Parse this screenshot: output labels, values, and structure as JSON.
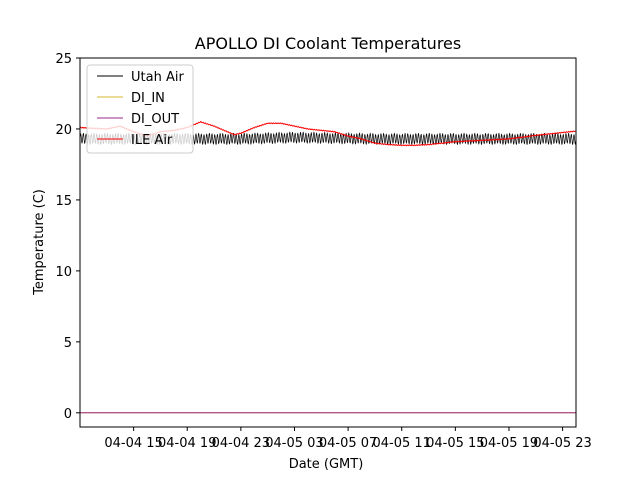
{
  "chart_data": {
    "type": "line",
    "title": "APOLLO DI Coolant Temperatures",
    "xlabel": "Date (GMT)",
    "ylabel": "Temperature (C)",
    "ylim": [
      -1,
      25
    ],
    "xlim_hours": [
      0,
      37
    ],
    "yticks": [
      0,
      5,
      10,
      15,
      20,
      25
    ],
    "xticks": [
      {
        "hour": 4,
        "label": "04-04 15"
      },
      {
        "hour": 8,
        "label": "04-04 19"
      },
      {
        "hour": 12,
        "label": "04-04 23"
      },
      {
        "hour": 16,
        "label": "04-05 03"
      },
      {
        "hour": 20,
        "label": "04-05 07"
      },
      {
        "hour": 24,
        "label": "04-05 11"
      },
      {
        "hour": 28,
        "label": "04-05 15"
      },
      {
        "hour": 32,
        "label": "04-05 19"
      },
      {
        "hour": 36,
        "label": "04-05 23"
      }
    ],
    "legend_position": "top-left",
    "series": [
      {
        "name": "Utah Air",
        "color": "#000000",
        "pattern": "oscillating",
        "oscillation_period_hours": 0.2,
        "amplitude": 0.35,
        "baseline": [
          [
            0,
            19.3
          ],
          [
            6,
            19.3
          ],
          [
            12,
            19.3
          ],
          [
            16,
            19.4
          ],
          [
            22,
            19.3
          ],
          [
            30,
            19.3
          ],
          [
            37,
            19.3
          ]
        ]
      },
      {
        "name": "DI_IN",
        "color": "#d4b830",
        "values": [
          [
            0,
            0
          ],
          [
            37,
            0
          ]
        ]
      },
      {
        "name": "DI_OUT",
        "color": "#9a2a8a",
        "values": [
          [
            0,
            0
          ],
          [
            37,
            0
          ]
        ]
      },
      {
        "name": "ILE Air",
        "color": "#ff0000",
        "values": [
          [
            0,
            20.1
          ],
          [
            2,
            20.0
          ],
          [
            3,
            20.2
          ],
          [
            4,
            19.8
          ],
          [
            5,
            19.5
          ],
          [
            6,
            19.8
          ],
          [
            7,
            19.9
          ],
          [
            8,
            20.1
          ],
          [
            9,
            20.5
          ],
          [
            10,
            20.2
          ],
          [
            11,
            19.8
          ],
          [
            11.5,
            19.6
          ],
          [
            12,
            19.7
          ],
          [
            13,
            20.1
          ],
          [
            14,
            20.4
          ],
          [
            15,
            20.4
          ],
          [
            16,
            20.2
          ],
          [
            17,
            20.0
          ],
          [
            18,
            19.9
          ],
          [
            19,
            19.8
          ],
          [
            20,
            19.5
          ],
          [
            21,
            19.3
          ],
          [
            22,
            19.0
          ],
          [
            23,
            18.9
          ],
          [
            24,
            18.85
          ],
          [
            25,
            18.85
          ],
          [
            26,
            18.9
          ],
          [
            27,
            19.0
          ],
          [
            28,
            19.1
          ],
          [
            30,
            19.2
          ],
          [
            32,
            19.3
          ],
          [
            34,
            19.55
          ],
          [
            36,
            19.75
          ],
          [
            37,
            19.85
          ]
        ]
      }
    ]
  }
}
